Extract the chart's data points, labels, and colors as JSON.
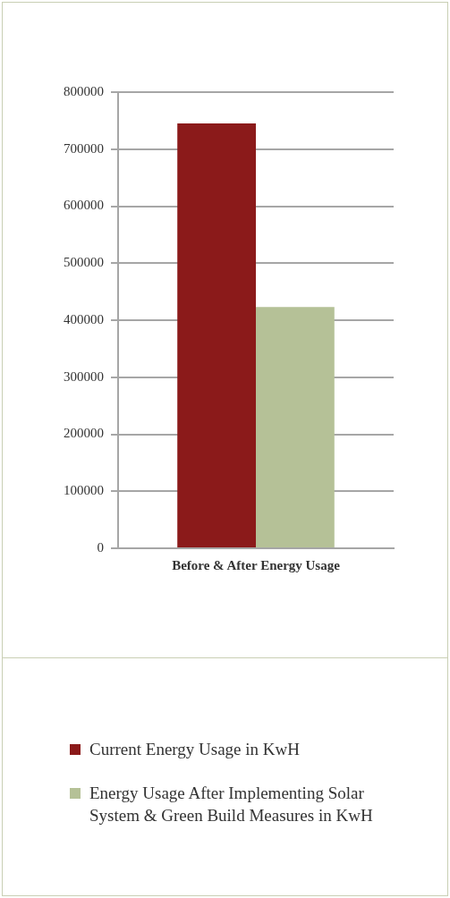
{
  "chart_data": {
    "type": "bar",
    "categories": [
      "Before & After Energy Usage"
    ],
    "series": [
      {
        "name": "Current Energy Usage in KwH",
        "color": "#8b1a1a",
        "values": [
          745000
        ]
      },
      {
        "name": "Energy Usage After Implementing Solar System & Green Build Measures in KwH",
        "color": "#b5c197",
        "values": [
          423000
        ]
      }
    ],
    "ylim": [
      0,
      800000
    ],
    "yticks": [
      0,
      100000,
      200000,
      300000,
      400000,
      500000,
      600000,
      700000,
      800000
    ],
    "grid": "y",
    "legend": "bottom"
  }
}
